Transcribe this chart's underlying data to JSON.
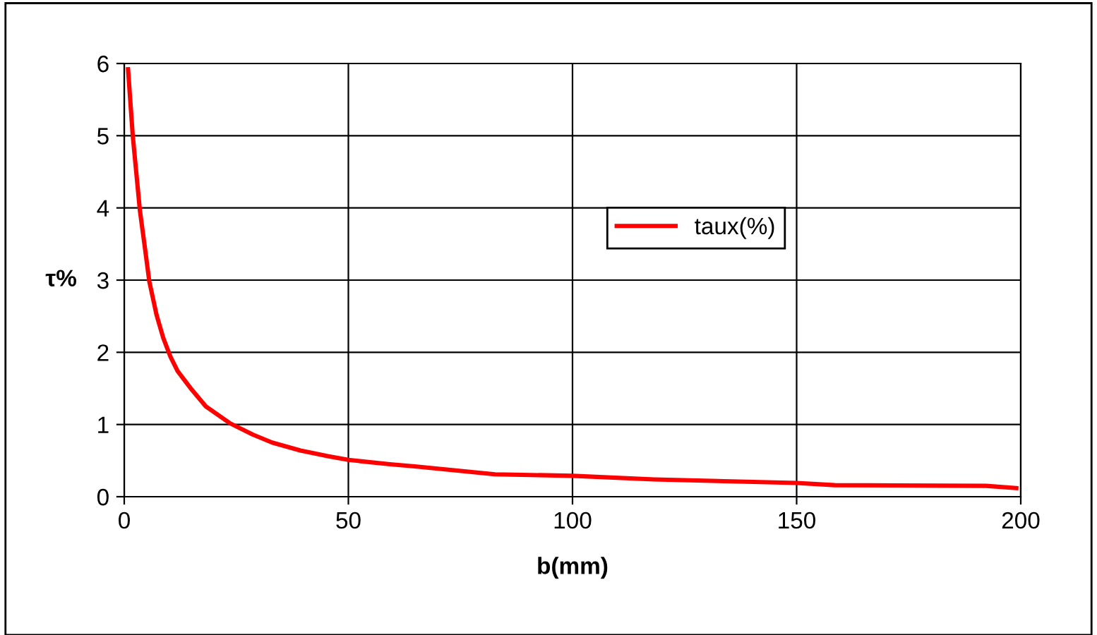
{
  "chart_data": {
    "type": "line",
    "xlabel": "b(mm)",
    "ylabel": "τ%",
    "x": [
      0.85,
      1.9,
      2.9,
      3.5,
      4.5,
      5.6,
      7.2,
      8.7,
      10.3,
      11.9,
      15.1,
      18.2,
      23.5,
      28.7,
      33,
      39.3,
      45.6,
      50,
      59.3,
      64.8,
      82.7,
      100,
      118.2,
      150,
      158.5,
      192.3,
      199
    ],
    "series": [
      {
        "name": "taux(%)",
        "color": "#ff0000",
        "values": [
          5.92,
          5.0,
          4.35,
          3.96,
          3.5,
          2.98,
          2.52,
          2.2,
          1.94,
          1.74,
          1.48,
          1.25,
          1.02,
          0.86,
          0.75,
          0.64,
          0.56,
          0.51,
          0.45,
          0.42,
          0.31,
          0.29,
          0.24,
          0.19,
          0.16,
          0.15,
          0.12
        ]
      }
    ],
    "xlim": [
      0,
      200
    ],
    "xticks": [
      0,
      50,
      100,
      150,
      200
    ],
    "ylim": [
      0,
      6
    ],
    "yticks": [
      0,
      1,
      2,
      3,
      4,
      5,
      6
    ],
    "grid": true,
    "legend": "center right",
    "marker": "none",
    "line_style": "solid"
  }
}
